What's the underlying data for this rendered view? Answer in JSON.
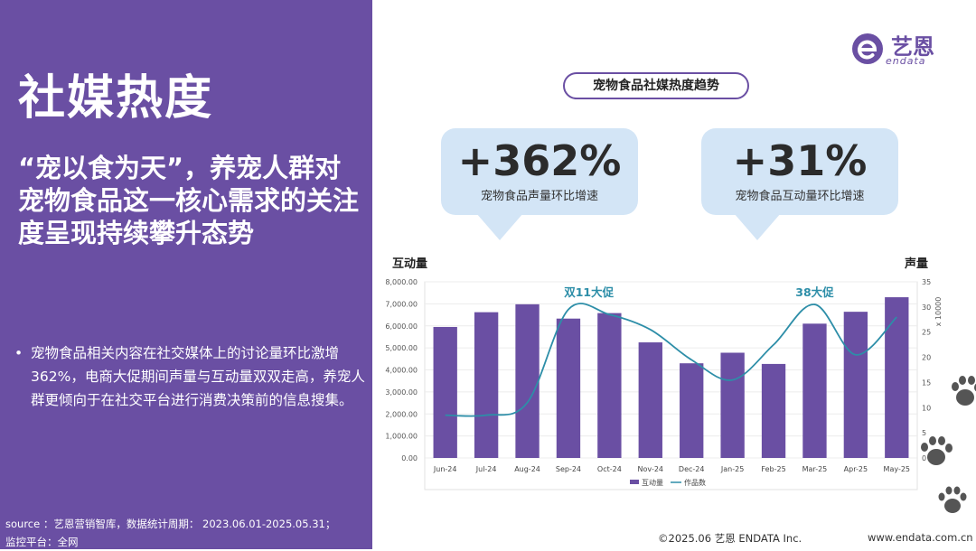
{
  "left": {
    "title": "社媒热度",
    "headline": "“宠以食为天”，养宠人群对宠物食品这一核心需求的关注度呈现持续攀升态势",
    "bullet": "宠物食品相关内容在社交媒体上的讨论量环比激增362%，电商大促期间声量与互动量双双走高，养宠人群更倾向于在社交平台进行消费决策前的信息搜集。",
    "source_line1": "source ：艺恩营销智库，数据统计周期： 2023.06.01-2025.05.31；",
    "source_line2": "监控平台：全网"
  },
  "logo": {
    "cn": "艺恩",
    "en": "endata",
    "color": "#6a4fa3"
  },
  "chart_header": "宠物食品社媒热度趋势",
  "kpis": [
    {
      "value": "+362%",
      "label": "宠物食品声量环比增速"
    },
    {
      "value": "+31%",
      "label": "宠物食品互动量环比增速"
    }
  ],
  "footer": {
    "copyright": "©2025.06  艺恩 ENDATA Inc.",
    "url": "www.endata.com.cn"
  },
  "colors": {
    "panel": "#6a4fa3",
    "bar": "#6a4fa3",
    "line": "#2d8ea8",
    "kpi_bg": "#d3e5f6"
  },
  "chart_data": {
    "type": "bar",
    "categories": [
      "Jun-24",
      "Jul-24",
      "Aug-24",
      "Sep-24",
      "Oct-24",
      "Nov-24",
      "Dec-24",
      "Jan-25",
      "Feb-25",
      "Mar-25",
      "Apr-25",
      "May-25"
    ],
    "left_axis_title": "互动量",
    "right_axis_title": "声量",
    "right_axis_unit": "x 10000",
    "ylim_left": [
      0,
      8000
    ],
    "yticks_left": [
      "0.00",
      "1,000.00",
      "2,000.00",
      "3,000.00",
      "4,000.00",
      "5,000.00",
      "6,000.00",
      "7,000.00",
      "8,000.00"
    ],
    "ylim_right": [
      0,
      35
    ],
    "yticks_right": [
      "0",
      "5",
      "10",
      "15",
      "20",
      "25",
      "30",
      "35"
    ],
    "series": [
      {
        "name": "互动量",
        "type": "bar",
        "axis": "left",
        "values": [
          5950,
          6620,
          6980,
          6330,
          6580,
          5250,
          4300,
          4780,
          4270,
          6100,
          6640,
          7300
        ]
      },
      {
        "name": "作品数",
        "type": "line",
        "axis": "right",
        "values": [
          8.5,
          8.5,
          11,
          29.5,
          28.5,
          25.5,
          19.5,
          15.5,
          22.5,
          30.5,
          20.5,
          28
        ]
      }
    ],
    "annotations": [
      {
        "text": "双11大促",
        "category": "Oct-24"
      },
      {
        "text": "38大促",
        "category": "Mar-25"
      }
    ],
    "legend_position": "bottom",
    "grid": true
  }
}
